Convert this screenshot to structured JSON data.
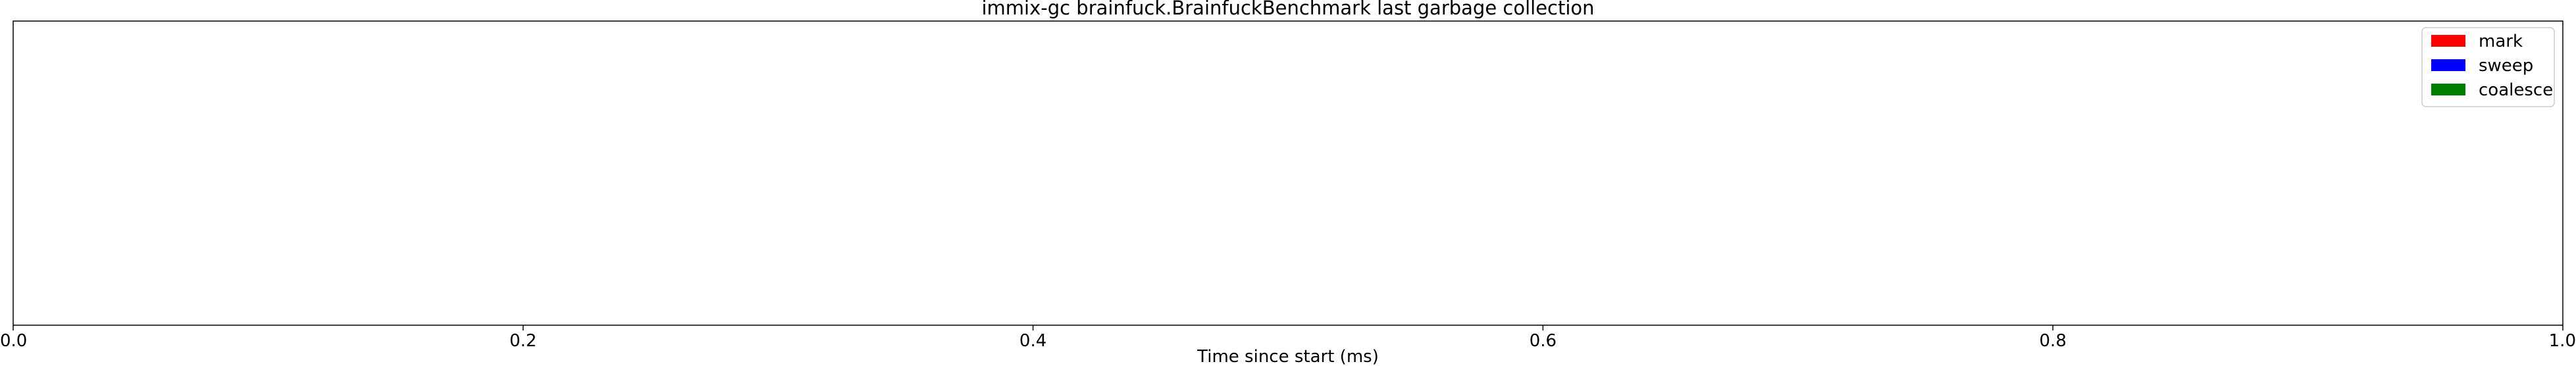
{
  "chart_data": {
    "type": "bar",
    "title": "immix-gc brainfuck.BrainfuckBenchmark last garbage collection",
    "xlabel": "Time since start (ms)",
    "ylabel": "",
    "xlim": [
      0.0,
      1.0
    ],
    "xticks": [
      "0.0",
      "0.2",
      "0.4",
      "0.6",
      "0.8",
      "1.0"
    ],
    "grid": false,
    "legend_position": "top-right",
    "series": [
      {
        "name": "mark",
        "color": "#ff0000",
        "values": []
      },
      {
        "name": "sweep",
        "color": "#0000ff",
        "values": []
      },
      {
        "name": "coalesce",
        "color": "#008000",
        "values": []
      }
    ]
  }
}
